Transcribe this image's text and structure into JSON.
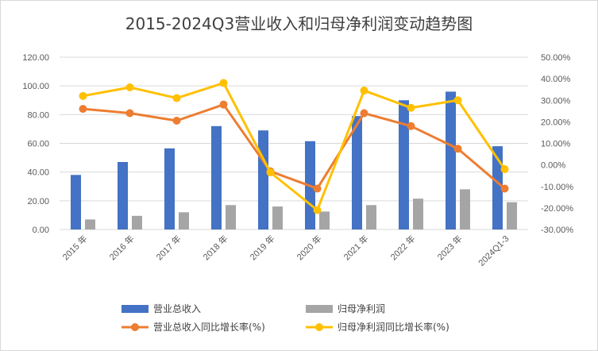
{
  "chart_data": {
    "type": "bar+line",
    "title": "2015-2024Q3营业收入和归母净利润变动趋势图",
    "categories": [
      "2015 年",
      "2016 年",
      "2017 年",
      "2018 年",
      "2019 年",
      "2020 年",
      "2021 年",
      "2022 年",
      "2023 年",
      "2024Q1-3"
    ],
    "left_axis": {
      "min": 0,
      "max": 120,
      "step": 20,
      "tick_labels": [
        "0.00",
        "20.00",
        "40.00",
        "60.00",
        "80.00",
        "100.00",
        "120.00"
      ]
    },
    "right_axis": {
      "min": -30,
      "max": 50,
      "step": 10,
      "tick_labels": [
        "-30.00%",
        "-20.00%",
        "-10.00%",
        "0.00%",
        "10.00%",
        "20.00%",
        "30.00%",
        "40.00%",
        "50.00%"
      ]
    },
    "series": [
      {
        "name": "营业总收入",
        "type": "bar",
        "axis": "left",
        "color": "#4472C4",
        "values": [
          38,
          47,
          56.5,
          72,
          69,
          61.5,
          79,
          90,
          96,
          58
        ]
      },
      {
        "name": "归母净利润",
        "type": "bar",
        "axis": "left",
        "color": "#A5A5A5",
        "values": [
          7,
          9.5,
          12,
          17,
          16,
          12.5,
          17,
          21.5,
          28,
          19
        ]
      },
      {
        "name": "营业总收入同比增长率(%)",
        "type": "line",
        "axis": "right",
        "color": "#ED7D31",
        "values": [
          26,
          24,
          20.5,
          28,
          -3,
          -11,
          24,
          18,
          7.5,
          -11
        ]
      },
      {
        "name": "归母净利润同比增长率(%)",
        "type": "line",
        "axis": "right",
        "color": "#FFC000",
        "values": [
          32,
          36,
          31,
          38,
          -3.5,
          -21,
          34.5,
          26.5,
          30,
          -2
        ]
      }
    ],
    "grid": true,
    "legend_position": "bottom"
  }
}
